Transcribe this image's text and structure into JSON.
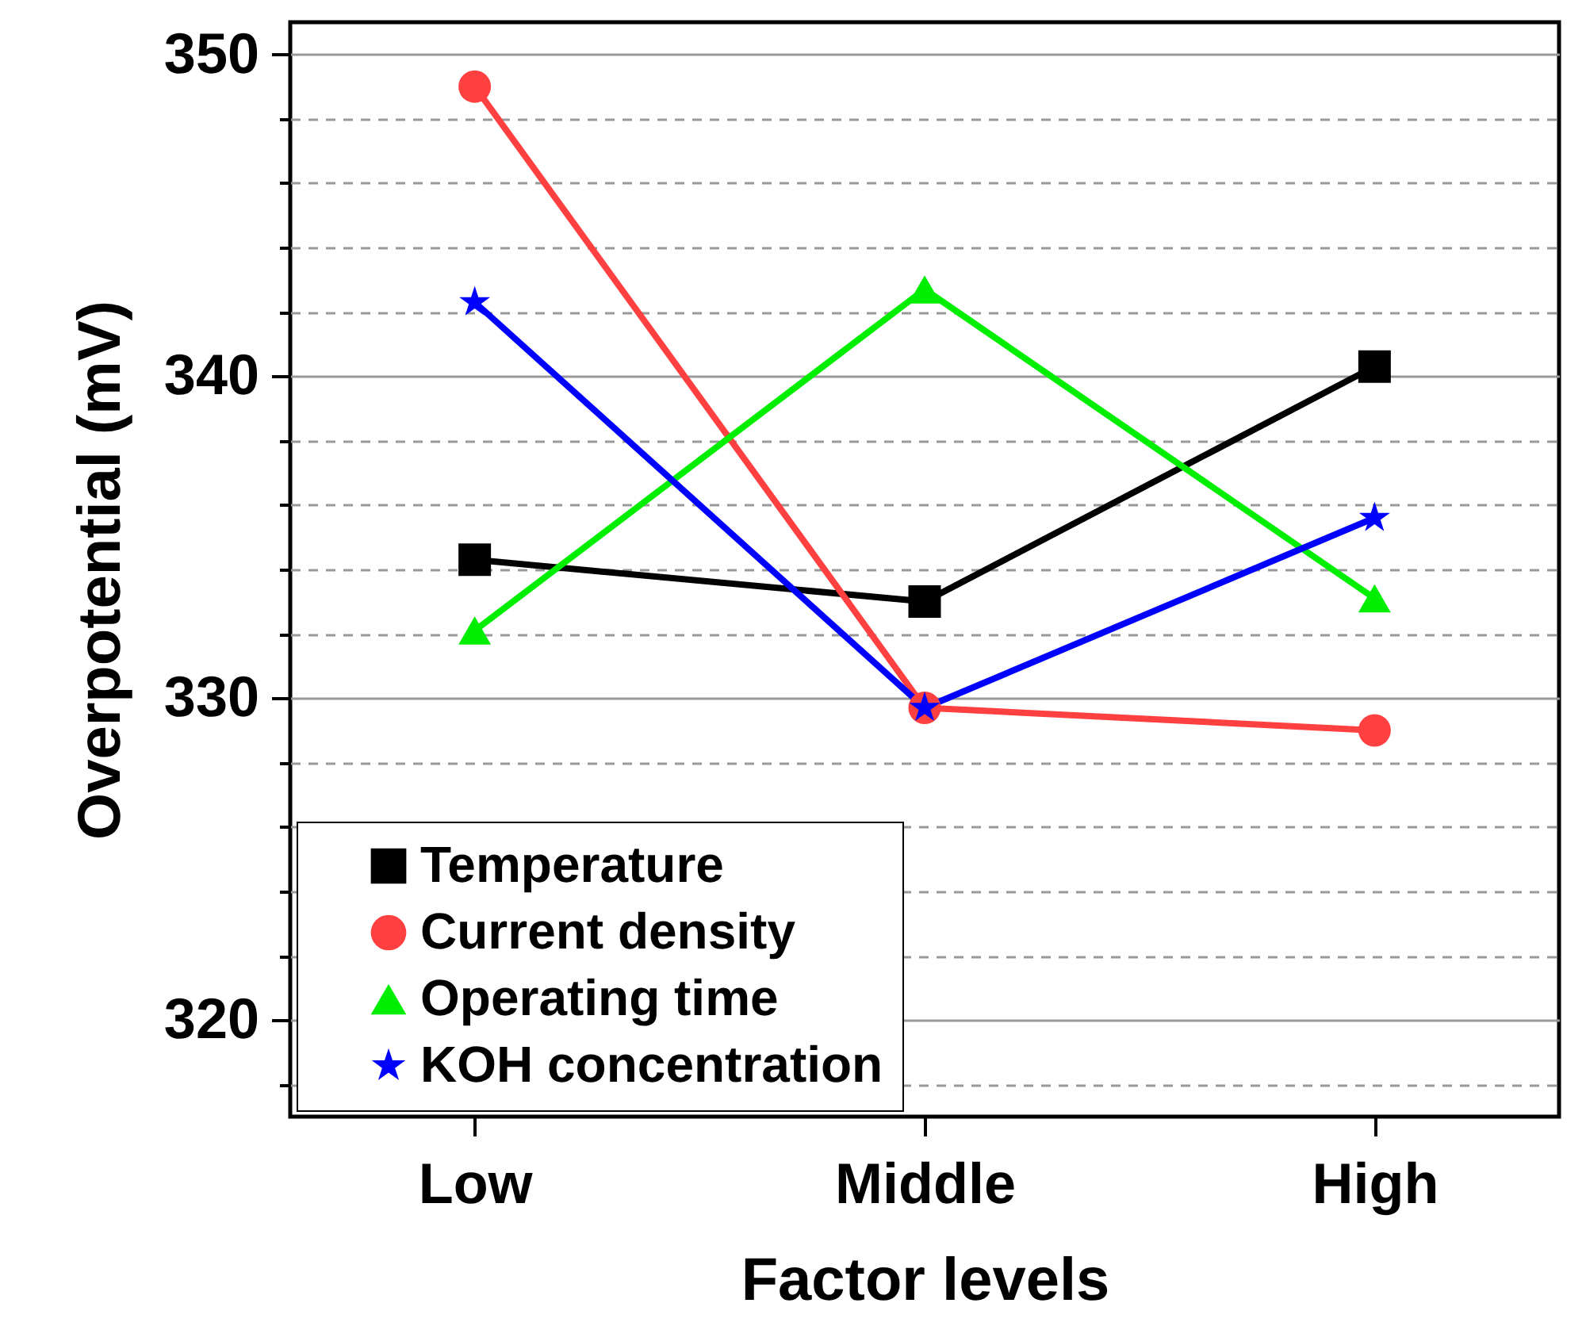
{
  "chart_data": {
    "type": "line",
    "xlabel": "Factor levels",
    "ylabel": "Overpotential (mV)",
    "categories": [
      "Low",
      "Middle",
      "High"
    ],
    "series": [
      {
        "name": "Temperature",
        "color": "#000000",
        "marker": "square",
        "values": [
          334.3,
          333.0,
          340.3
        ]
      },
      {
        "name": "Current density",
        "color": "#ff4040",
        "marker": "circle",
        "values": [
          349.0,
          329.7,
          329.0
        ]
      },
      {
        "name": "Operating time",
        "color": "#00ee00",
        "marker": "triangle",
        "values": [
          332.1,
          342.7,
          333.1
        ]
      },
      {
        "name": "KOH concentration",
        "color": "#0000ff",
        "marker": "star",
        "values": [
          342.3,
          329.7,
          335.6
        ]
      }
    ],
    "ylim": [
      317,
      351
    ],
    "yticks": [
      {
        "value": 318,
        "label": null
      },
      320,
      {
        "value": 322,
        "label": null
      },
      {
        "value": 324,
        "label": null
      },
      {
        "value": 326,
        "label": null
      },
      {
        "value": 328,
        "label": null
      },
      330,
      {
        "value": 332,
        "label": null
      },
      {
        "value": 334,
        "label": null
      },
      {
        "value": 336,
        "label": null
      },
      {
        "value": 338,
        "label": null
      },
      340,
      {
        "value": 342,
        "label": null
      },
      {
        "value": 344,
        "label": null
      },
      {
        "value": 346,
        "label": null
      },
      {
        "value": 348,
        "label": null
      },
      350
    ],
    "grid": "y",
    "legend": "bottom left",
    "line_style": "solid"
  }
}
